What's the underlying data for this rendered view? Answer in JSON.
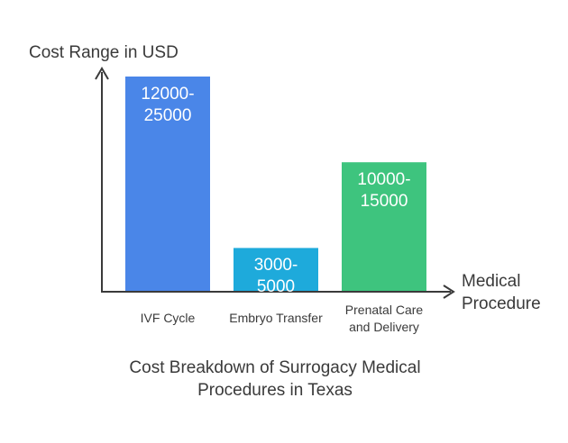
{
  "chart_data": {
    "type": "bar",
    "title": "Cost Breakdown of Surrogacy Medical Procedures in Texas",
    "ylabel": "Cost Range in USD",
    "xlabel": "Medical Procedure",
    "categories": [
      "IVF Cycle",
      "Embryo Transfer",
      "Prenatal Care and Delivery"
    ],
    "value_labels": [
      "12000-25000",
      "3000-5000",
      "10000-15000"
    ],
    "ranges": [
      [
        12000,
        25000
      ],
      [
        3000,
        5000
      ],
      [
        10000,
        15000
      ]
    ],
    "values": [
      25000,
      5000,
      15000
    ],
    "colors": [
      "#4a86e8",
      "#1eaadb",
      "#3ec47e"
    ],
    "ylim": [
      0,
      25000
    ],
    "grid": false,
    "legend": "none"
  }
}
